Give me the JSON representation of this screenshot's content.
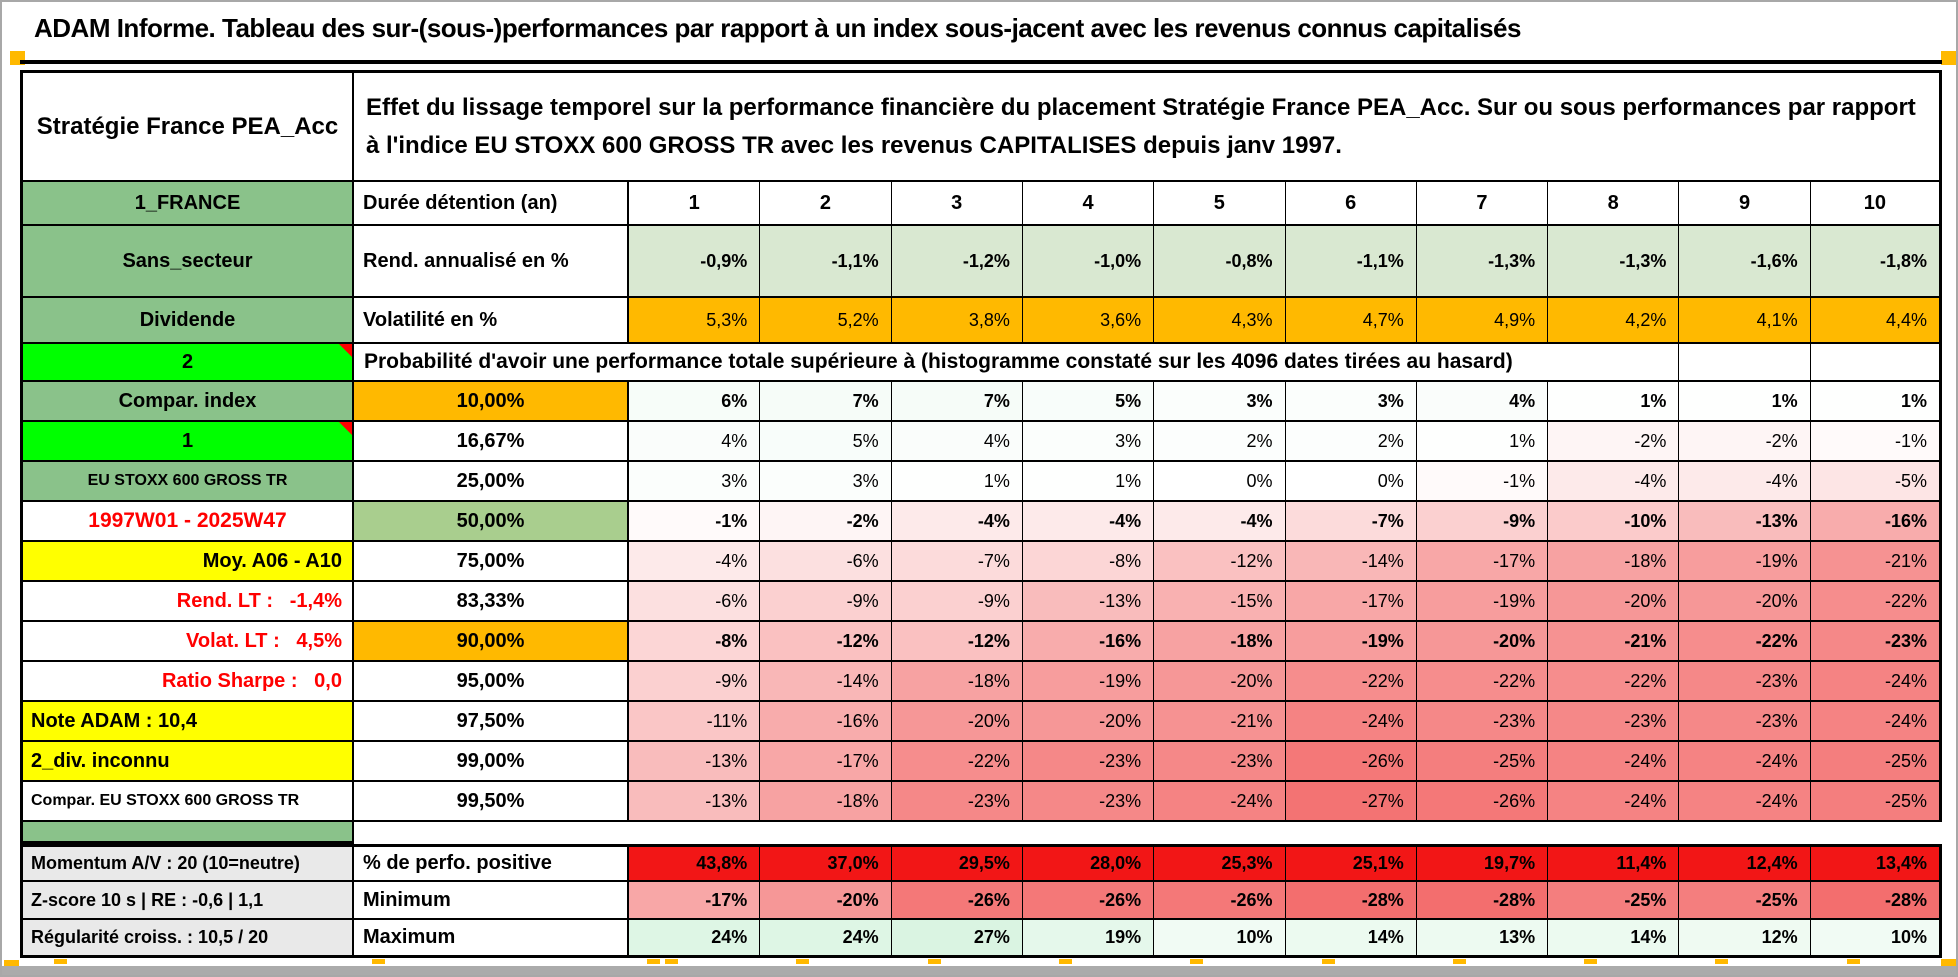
{
  "title": "ADAM Informe. Tableau des sur-(sous-)performances par rapport à un index sous-jacent avec les revenus connus capitalisés",
  "header": {
    "strategy": "Stratégie France PEA_Acc",
    "description": "Effet du lissage temporel sur la performance financière du placement Stratégie France PEA_Acc. Sur ou sous performances par rapport à l'indice EU STOXX 600 GROSS TR avec les revenus CAPITALISES depuis janv 1997."
  },
  "colors": {
    "header_green": "#8AC28A",
    "bright_green": "#00FF00",
    "fill_green": "#A9CE8E",
    "row_green": "#D9E8D1",
    "orange": "#FFB900",
    "yellow": "#FFFF00",
    "red_text": "#FF0000",
    "red_bg": "#F21616",
    "gray": "#E9E9E9"
  },
  "table": {
    "rows": [
      {
        "label": "1_FRANCE",
        "ls": "green",
        "header": "Durée détention (an)",
        "values": [
          "1",
          "2",
          "3",
          "4",
          "5",
          "6",
          "7",
          "8",
          "9",
          "10"
        ],
        "vmode": "plain",
        "vbold": true,
        "vcenter": true
      },
      {
        "label": "Sans_secteur",
        "ls": "green",
        "header": "Rend. annualisé en %",
        "values": [
          "-0,9%",
          "-1,1%",
          "-1,2%",
          "-1,0%",
          "-0,8%",
          "-1,1%",
          "-1,3%",
          "-1,3%",
          "-1,6%",
          "-1,8%"
        ],
        "vmode": "lightgreen",
        "vbold": true
      },
      {
        "label": "Dividende",
        "ls": "green",
        "header": "Volatilité en %",
        "values": [
          "5,3%",
          "5,2%",
          "3,8%",
          "3,6%",
          "4,3%",
          "4,7%",
          "4,9%",
          "4,2%",
          "4,1%",
          "4,4%"
        ],
        "vmode": "orange"
      },
      {
        "type": "prob",
        "label": "2",
        "ls": "bright",
        "note": true,
        "span_text": "Probabilité d'avoir une performance totale supérieure à (histogramme constaté sur les 4096 dates tirées au hasard)"
      },
      {
        "label": "Compar. index",
        "ls": "green",
        "center": "10,00%",
        "cbg": "orange",
        "values": [
          "6%",
          "7%",
          "7%",
          "5%",
          "3%",
          "3%",
          "4%",
          "1%",
          "1%",
          "1%"
        ],
        "vmode": "auto",
        "vbold": true
      },
      {
        "label": "1",
        "ls": "bright",
        "note": true,
        "center": "16,67%",
        "values": [
          "4%",
          "5%",
          "4%",
          "3%",
          "2%",
          "2%",
          "1%",
          "-2%",
          "-2%",
          "-1%"
        ],
        "vmode": "auto"
      },
      {
        "label": "EU STOXX 600 GROSS TR",
        "ls": "green",
        "small": true,
        "center": "25,00%",
        "values": [
          "3%",
          "3%",
          "1%",
          "1%",
          "0%",
          "0%",
          "-1%",
          "-4%",
          "-4%",
          "-5%"
        ],
        "vmode": "auto"
      },
      {
        "label": "1997W01 - 2025W47",
        "ls": "white_red",
        "center": "50,00%",
        "cbg": "greenfill",
        "values": [
          "-1%",
          "-2%",
          "-4%",
          "-4%",
          "-4%",
          "-7%",
          "-9%",
          "-10%",
          "-13%",
          "-16%"
        ],
        "vmode": "auto",
        "vbold": true
      },
      {
        "label": "Moy. A06 - A10",
        "ls": "yellow_right",
        "center": "75,00%",
        "values": [
          "-4%",
          "-6%",
          "-7%",
          "-8%",
          "-12%",
          "-14%",
          "-17%",
          "-18%",
          "-19%",
          "-21%"
        ],
        "vmode": "auto"
      },
      {
        "label": "Rend. LT :   -1,4%",
        "ls": "red_right",
        "center": "83,33%",
        "values": [
          "-6%",
          "-9%",
          "-9%",
          "-13%",
          "-15%",
          "-17%",
          "-19%",
          "-20%",
          "-20%",
          "-22%"
        ],
        "vmode": "auto"
      },
      {
        "label": "Volat. LT :   4,5%",
        "ls": "red_right",
        "center": "90,00%",
        "cbg": "orange",
        "values": [
          "-8%",
          "-12%",
          "-12%",
          "-16%",
          "-18%",
          "-19%",
          "-20%",
          "-21%",
          "-22%",
          "-23%"
        ],
        "vmode": "auto",
        "vbold": true
      },
      {
        "label": "Ratio Sharpe :   0,0",
        "ls": "red_right",
        "center": "95,00%",
        "values": [
          "-9%",
          "-14%",
          "-18%",
          "-19%",
          "-20%",
          "-22%",
          "-22%",
          "-22%",
          "-23%",
          "-24%"
        ],
        "vmode": "auto"
      },
      {
        "label": "Note ADAM : 10,4",
        "ls": "yellow_left",
        "center": "97,50%",
        "values": [
          "-11%",
          "-16%",
          "-20%",
          "-20%",
          "-21%",
          "-24%",
          "-23%",
          "-23%",
          "-23%",
          "-24%"
        ],
        "vmode": "auto"
      },
      {
        "label": "2_div. inconnu",
        "ls": "yellow_left",
        "center": "99,00%",
        "values": [
          "-13%",
          "-17%",
          "-22%",
          "-23%",
          "-23%",
          "-26%",
          "-25%",
          "-24%",
          "-24%",
          "-25%"
        ],
        "vmode": "auto"
      },
      {
        "label": "Compar. EU STOXX 600 GROSS TR",
        "ls": "white_left",
        "small": true,
        "center": "99,50%",
        "values": [
          "-13%",
          "-18%",
          "-23%",
          "-23%",
          "-24%",
          "-27%",
          "-26%",
          "-24%",
          "-24%",
          "-25%"
        ],
        "vmode": "auto"
      },
      {
        "type": "spacer"
      },
      {
        "label": "Momentum A/V : 20 (10=neutre)",
        "ls": "gray_left",
        "header": "% de perfo. positive",
        "sectionTop": true,
        "values": [
          "43,8%",
          "37,0%",
          "29,5%",
          "28,0%",
          "25,3%",
          "25,1%",
          "19,7%",
          "11,4%",
          "12,4%",
          "13,4%"
        ],
        "vmode": "red",
        "vbold": true
      },
      {
        "label": "Z-score 10 s | RE : -0,6 | 1,1",
        "ls": "gray_left",
        "header": "Minimum",
        "values": [
          "-17%",
          "-20%",
          "-26%",
          "-26%",
          "-26%",
          "-28%",
          "-28%",
          "-25%",
          "-25%",
          "-28%"
        ],
        "vmode": "auto",
        "vbold": true
      },
      {
        "label": "Régularité croiss. : 10,5 / 20",
        "ls": "gray_left",
        "header": "Maximum",
        "last": true,
        "values": [
          "24%",
          "24%",
          "27%",
          "19%",
          "10%",
          "14%",
          "13%",
          "14%",
          "12%",
          "10%"
        ],
        "vmode": "auto",
        "vbold": true
      }
    ]
  }
}
